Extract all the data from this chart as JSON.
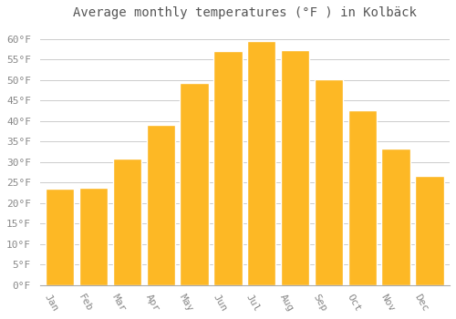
{
  "title": "Average monthly temperatures (°F ) in Kolbäck",
  "months": [
    "Jan",
    "Feb",
    "Mar",
    "Apr",
    "May",
    "Jun",
    "Jul",
    "Aug",
    "Sep",
    "Oct",
    "Nov",
    "Dec"
  ],
  "values": [
    23.5,
    23.8,
    30.8,
    39.0,
    49.3,
    57.0,
    59.5,
    57.2,
    50.2,
    42.5,
    33.2,
    26.5
  ],
  "bar_color": "#FDB825",
  "bar_edge_color": "#ffffff",
  "background_color": "#ffffff",
  "grid_color": "#cccccc",
  "ylim": [
    0,
    63
  ],
  "yticks": [
    0,
    5,
    10,
    15,
    20,
    25,
    30,
    35,
    40,
    45,
    50,
    55,
    60
  ],
  "title_fontsize": 10,
  "tick_fontsize": 8,
  "title_color": "#555555",
  "tick_color": "#888888",
  "bar_width": 0.85,
  "xlabel_rotation": -60,
  "label_ha": "right"
}
